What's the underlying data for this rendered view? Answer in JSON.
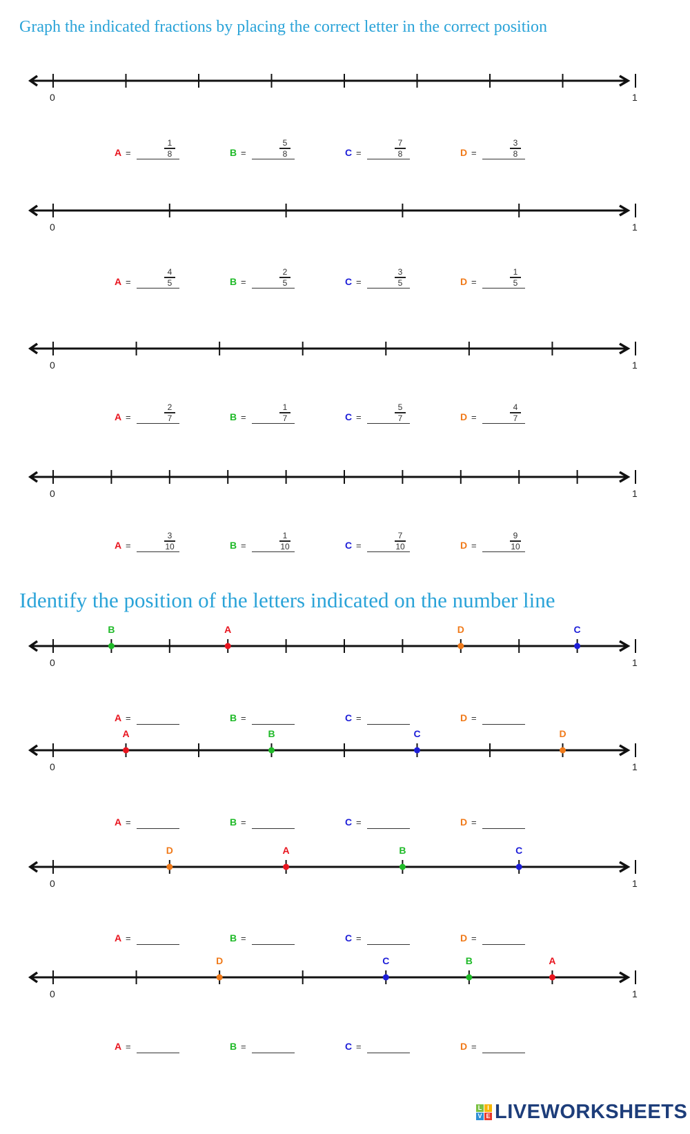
{
  "colors": {
    "heading": "#2aa3d8",
    "A": "#e8141e",
    "B": "#1fba28",
    "C": "#1d1ed8",
    "D": "#f07a1a",
    "line": "#111111"
  },
  "section1": {
    "title": "Graph the indicated fractions by placing the correct letter in the correct position",
    "lines": [
      {
        "divisions": 8,
        "start_label": "0",
        "end_label": "1",
        "answers": [
          {
            "letter": "A",
            "num": "1",
            "den": "8"
          },
          {
            "letter": "B",
            "num": "5",
            "den": "8"
          },
          {
            "letter": "C",
            "num": "7",
            "den": "8"
          },
          {
            "letter": "D",
            "num": "3",
            "den": "8"
          }
        ]
      },
      {
        "divisions": 5,
        "start_label": "0",
        "end_label": "1",
        "answers": [
          {
            "letter": "A",
            "num": "4",
            "den": "5"
          },
          {
            "letter": "B",
            "num": "2",
            "den": "5"
          },
          {
            "letter": "C",
            "num": "3",
            "den": "5"
          },
          {
            "letter": "D",
            "num": "1",
            "den": "5"
          }
        ]
      },
      {
        "divisions": 7,
        "start_label": "0",
        "end_label": "1",
        "answers": [
          {
            "letter": "A",
            "num": "2",
            "den": "7"
          },
          {
            "letter": "B",
            "num": "1",
            "den": "7"
          },
          {
            "letter": "C",
            "num": "5",
            "den": "7"
          },
          {
            "letter": "D",
            "num": "4",
            "den": "7"
          }
        ]
      },
      {
        "divisions": 10,
        "start_label": "0",
        "end_label": "1",
        "answers": [
          {
            "letter": "A",
            "num": "3",
            "den": "10"
          },
          {
            "letter": "B",
            "num": "1",
            "den": "10"
          },
          {
            "letter": "C",
            "num": "7",
            "den": "10"
          },
          {
            "letter": "D",
            "num": "9",
            "den": "10"
          }
        ]
      }
    ]
  },
  "section2": {
    "title": "Identify the position of the letters indicated on the number line",
    "eq": "=",
    "lines": [
      {
        "divisions": 10,
        "start_label": "0",
        "end_label": "1",
        "markers": [
          {
            "letter": "B",
            "pos": 1
          },
          {
            "letter": "A",
            "pos": 3
          },
          {
            "letter": "D",
            "pos": 7
          },
          {
            "letter": "C",
            "pos": 9
          }
        ],
        "answers": [
          "A",
          "B",
          "C",
          "D"
        ]
      },
      {
        "divisions": 8,
        "start_label": "0",
        "end_label": "1",
        "markers": [
          {
            "letter": "A",
            "pos": 1
          },
          {
            "letter": "B",
            "pos": 3
          },
          {
            "letter": "C",
            "pos": 5
          },
          {
            "letter": "D",
            "pos": 7
          }
        ],
        "answers": [
          "A",
          "B",
          "C",
          "D"
        ]
      },
      {
        "divisions": 5,
        "start_label": "0",
        "end_label": "1",
        "markers": [
          {
            "letter": "D",
            "pos": 1
          },
          {
            "letter": "A",
            "pos": 2
          },
          {
            "letter": "B",
            "pos": 3
          },
          {
            "letter": "C",
            "pos": 4
          }
        ],
        "answers": [
          "A",
          "B",
          "C",
          "D"
        ]
      },
      {
        "divisions": 7,
        "start_label": "0",
        "end_label": "1",
        "markers": [
          {
            "letter": "D",
            "pos": 2
          },
          {
            "letter": "C",
            "pos": 4
          },
          {
            "letter": "B",
            "pos": 5
          },
          {
            "letter": "A",
            "pos": 6
          }
        ],
        "answers": [
          "A",
          "B",
          "C",
          "D"
        ]
      }
    ]
  },
  "eq": "=",
  "logo": {
    "text": "LIVEWORKSHEETS",
    "tiles": [
      "L",
      "I",
      "V",
      "E"
    ],
    "tile_colors": [
      "#7ac143",
      "#f7b500",
      "#2f8fd5",
      "#e8392c"
    ]
  }
}
